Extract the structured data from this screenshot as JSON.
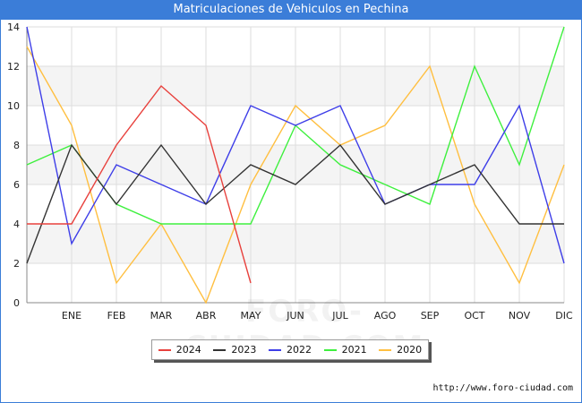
{
  "chart_data": {
    "type": "line",
    "title": "Matriculaciones de Vehiculos en Pechina",
    "xlabel": "",
    "ylabel": "",
    "categories": [
      "",
      "ENE",
      "FEB",
      "MAR",
      "ABR",
      "MAY",
      "JUN",
      "JUL",
      "AGO",
      "SEP",
      "OCT",
      "NOV",
      "DIC"
    ],
    "ylim": [
      0,
      14
    ],
    "yticks": [
      0,
      2,
      4,
      6,
      8,
      10,
      12,
      14
    ],
    "grid": true,
    "legend_position": "bottom",
    "series": [
      {
        "name": "2024",
        "color": "#e8413d",
        "values": [
          4,
          4,
          8,
          11,
          9,
          1,
          null,
          null,
          null,
          null,
          null,
          null,
          null
        ]
      },
      {
        "name": "2023",
        "color": "#333333",
        "values": [
          2,
          8,
          5,
          8,
          5,
          7,
          6,
          8,
          5,
          6,
          7,
          4,
          4
        ]
      },
      {
        "name": "2022",
        "color": "#3e3ee8",
        "values": [
          14,
          3,
          7,
          6,
          5,
          10,
          9,
          10,
          5,
          6,
          6,
          10,
          2
        ]
      },
      {
        "name": "2021",
        "color": "#3ef03e",
        "values": [
          7,
          8,
          5,
          4,
          4,
          4,
          9,
          7,
          6,
          5,
          12,
          7,
          14
        ]
      },
      {
        "name": "2020",
        "color": "#ffbf40",
        "values": [
          13,
          9,
          1,
          4,
          0,
          6,
          10,
          8,
          9,
          12,
          5,
          1,
          7
        ]
      }
    ]
  },
  "watermark": "FORO-CIUDAD.COM",
  "source": "http://www.foro-ciudad.com"
}
